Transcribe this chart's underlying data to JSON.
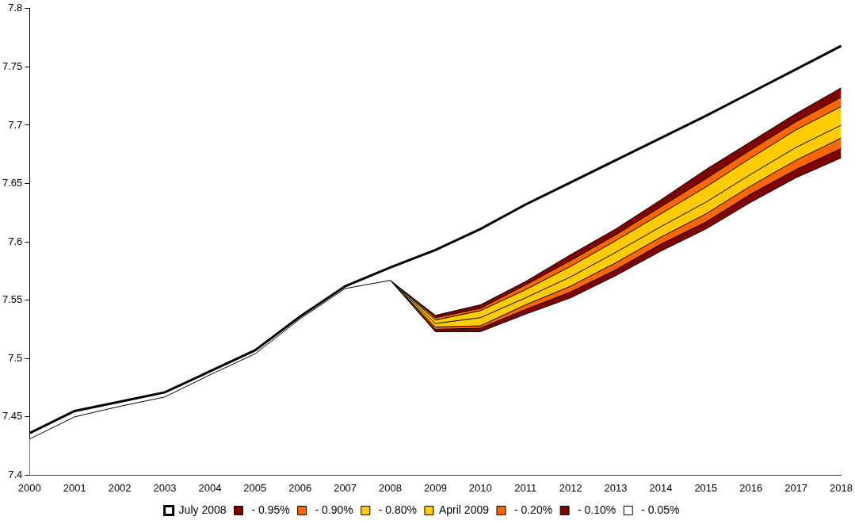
{
  "chart_data": {
    "type": "area",
    "legend": "bottom",
    "grid": false,
    "categories": [
      "2000",
      "2001",
      "2002",
      "2003",
      "2004",
      "2005",
      "2006",
      "2007",
      "2008",
      "2009",
      "2010",
      "2011",
      "2012",
      "2013",
      "2014",
      "2015",
      "2016",
      "2017",
      "2018"
    ],
    "ylim": [
      7.4,
      7.8
    ],
    "yticks": [
      7.4,
      7.45,
      7.5,
      7.55,
      7.6,
      7.65,
      7.7,
      7.75,
      7.8
    ],
    "series": [
      {
        "name": " - 0.05%",
        "color": "#ffffff",
        "values": [
          7.431,
          7.45,
          7.459,
          7.467,
          7.486,
          7.504,
          7.534,
          7.56,
          7.567,
          7.523,
          7.523,
          7.538,
          7.552,
          7.571,
          7.592,
          7.611,
          7.634,
          7.655,
          7.672
        ]
      },
      {
        "name": " - 0.10%",
        "color": "#800000",
        "values": [
          null,
          null,
          null,
          null,
          null,
          null,
          null,
          null,
          7.567,
          7.525,
          7.526,
          7.542,
          7.557,
          7.576,
          7.598,
          7.617,
          7.641,
          7.662,
          7.68
        ]
      },
      {
        "name": " - 0.20%",
        "color": "#ff6600",
        "values": [
          null,
          null,
          null,
          null,
          null,
          null,
          null,
          null,
          7.567,
          7.527,
          7.528,
          7.546,
          7.562,
          7.582,
          7.604,
          7.624,
          7.648,
          7.67,
          7.689
        ]
      },
      {
        "name": "April 2009",
        "color": "#ffcc00",
        "values": [
          null,
          null,
          null,
          null,
          null,
          null,
          null,
          null,
          7.567,
          7.53,
          7.535,
          7.552,
          7.57,
          7.591,
          7.613,
          7.634,
          7.658,
          7.681,
          7.7
        ]
      },
      {
        "name": " - 0.80%",
        "color": "#ffcc00",
        "values": [
          null,
          null,
          null,
          null,
          null,
          null,
          null,
          null,
          7.567,
          7.533,
          7.541,
          7.559,
          7.579,
          7.601,
          7.624,
          7.647,
          7.672,
          7.696,
          7.716
        ]
      },
      {
        "name": " - 0.90%",
        "color": "#ff6600",
        "values": [
          null,
          null,
          null,
          null,
          null,
          null,
          null,
          null,
          7.567,
          7.535,
          7.543,
          7.563,
          7.584,
          7.606,
          7.63,
          7.654,
          7.679,
          7.703,
          7.724
        ]
      },
      {
        "name": " - 0.95%",
        "color": "#800000",
        "values": [
          null,
          null,
          null,
          null,
          null,
          null,
          null,
          null,
          7.567,
          7.537,
          7.546,
          7.566,
          7.589,
          7.611,
          7.636,
          7.662,
          7.686,
          7.71,
          7.732
        ]
      },
      {
        "name": "July 2008",
        "type": "line",
        "color": "#000000",
        "values": [
          7.436,
          7.455,
          7.463,
          7.471,
          7.489,
          7.507,
          7.536,
          7.562,
          7.578,
          7.593,
          7.611,
          7.632,
          7.651,
          7.67,
          7.689,
          7.708,
          7.728,
          7.748,
          7.768
        ]
      }
    ]
  }
}
